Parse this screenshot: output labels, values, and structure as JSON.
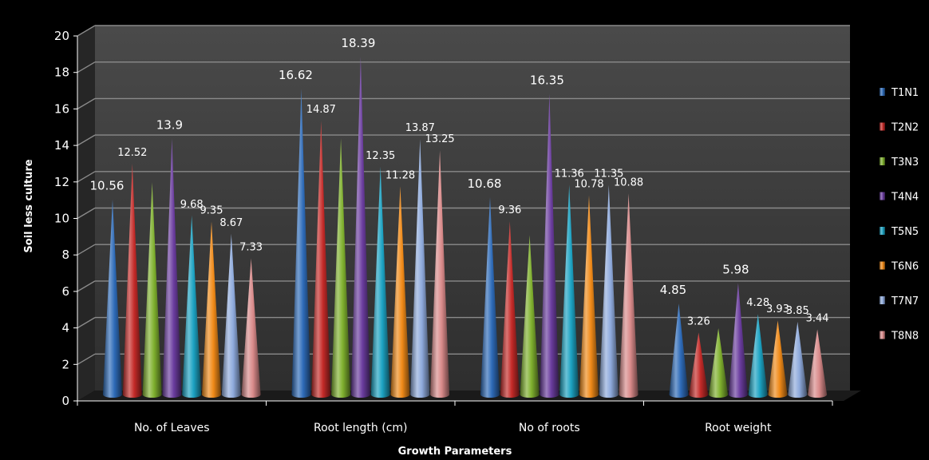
{
  "chart_data": {
    "type": "bar",
    "style": "3d-cone",
    "title": "",
    "xlabel": "Growth Parameters",
    "ylabel": "Soil less culture",
    "ylim": [
      0,
      20
    ],
    "yticks": [
      0,
      2,
      4,
      6,
      8,
      10,
      12,
      14,
      16,
      18,
      20
    ],
    "grid": true,
    "legend_position": "right",
    "categories": [
      "No. of Leaves",
      "Root length (cm)",
      "No of roots",
      "Root weight"
    ],
    "series": [
      {
        "name": "T1N1",
        "color": "#2e6bb8",
        "values": [
          10.56,
          16.62,
          10.68,
          4.85
        ]
      },
      {
        "name": "T2N2",
        "color": "#c42a28",
        "values": [
          12.52,
          14.87,
          9.36,
          3.26
        ]
      },
      {
        "name": "T3N3",
        "color": "#7fb02e",
        "values": [
          11.5,
          13.9,
          8.6,
          3.5
        ]
      },
      {
        "name": "T4N4",
        "color": "#6a3c9e",
        "values": [
          13.9,
          18.39,
          16.35,
          5.98
        ]
      },
      {
        "name": "T5N5",
        "color": "#1ca2c2",
        "values": [
          9.68,
          12.35,
          11.36,
          4.28
        ]
      },
      {
        "name": "T6N6",
        "color": "#f08a18",
        "values": [
          9.35,
          11.28,
          10.78,
          3.93
        ]
      },
      {
        "name": "T7N7",
        "color": "#8eaadc",
        "values": [
          8.67,
          13.87,
          11.35,
          3.85
        ]
      },
      {
        "name": "T8N8",
        "color": "#d98a8a",
        "values": [
          7.33,
          13.25,
          10.88,
          3.44
        ]
      }
    ],
    "data_labels": [
      [
        "10.56",
        "12.52",
        "",
        "13.9",
        "9.68",
        "9.35",
        "8.67",
        "7.33"
      ],
      [
        "16.62",
        "14.87",
        "",
        "18.39",
        "12.35",
        "11.28",
        "13.87",
        "13.25"
      ],
      [
        "10.68",
        "9.36",
        "",
        "16.35",
        "11.36",
        "10.78",
        "11.35",
        "10.88"
      ],
      [
        "4.85",
        "3.26",
        "",
        "5.98",
        "4.28",
        "3.93",
        "3.85",
        "3.44"
      ]
    ]
  }
}
